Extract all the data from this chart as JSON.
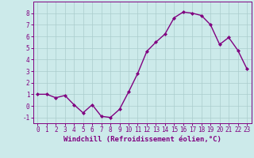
{
  "x": [
    0,
    1,
    2,
    3,
    4,
    5,
    6,
    7,
    8,
    9,
    10,
    11,
    12,
    13,
    14,
    15,
    16,
    17,
    18,
    19,
    20,
    21,
    22,
    23
  ],
  "y": [
    1.0,
    1.0,
    0.7,
    0.9,
    0.1,
    -0.6,
    0.1,
    -0.9,
    -1.0,
    -0.3,
    1.2,
    2.8,
    4.7,
    5.5,
    6.2,
    7.6,
    8.1,
    8.0,
    7.8,
    7.0,
    5.3,
    5.9,
    4.8,
    3.2
  ],
  "line_color": "#800080",
  "marker": "D",
  "marker_size": 2,
  "bg_color": "#cceaea",
  "grid_color": "#aacccc",
  "xlabel": "Windchill (Refroidissement éolien,°C)",
  "xlim": [
    -0.5,
    23.5
  ],
  "ylim": [
    -1.5,
    9.0
  ],
  "yticks": [
    -1,
    0,
    1,
    2,
    3,
    4,
    5,
    6,
    7,
    8
  ],
  "xticks": [
    0,
    1,
    2,
    3,
    4,
    5,
    6,
    7,
    8,
    9,
    10,
    11,
    12,
    13,
    14,
    15,
    16,
    17,
    18,
    19,
    20,
    21,
    22,
    23
  ],
  "tick_color": "#800080",
  "label_color": "#800080",
  "xlabel_fontsize": 6.5,
  "tick_fontsize": 5.5,
  "linewidth": 1.0
}
